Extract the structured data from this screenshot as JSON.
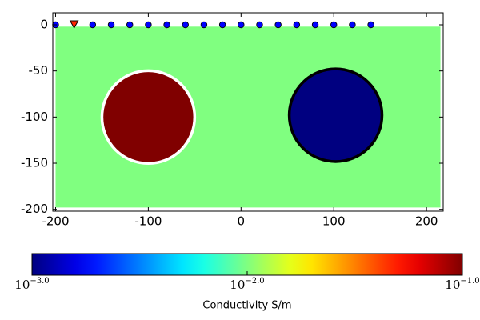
{
  "chart_data": {
    "type": "model",
    "xlim": [
      -203,
      218
    ],
    "ylim": [
      -202,
      13
    ],
    "xticks": [
      -200,
      -100,
      0,
      100,
      200
    ],
    "yticks": [
      0,
      -50,
      -100,
      -150,
      -200
    ],
    "background": {
      "x": [
        -200,
        215
      ],
      "y": [
        -198,
        -2
      ],
      "conductivity": 0.01,
      "color": "#80ff80"
    },
    "bodies": [
      {
        "cx": -100,
        "cy": -100,
        "r": 50,
        "conductivity": 0.1,
        "color": "#800000",
        "edge": "#ffffff"
      },
      {
        "cx": 102,
        "cy": -98,
        "r": 50,
        "conductivity": 0.001,
        "color": "#000080",
        "edge": "#000000"
      }
    ],
    "electrodes": {
      "x": [
        -200,
        -160,
        -140,
        -120,
        -100,
        -80,
        -60,
        -40,
        -20,
        0,
        20,
        40,
        60,
        80,
        100,
        120,
        140
      ],
      "y": 0,
      "color": "#0000ff"
    },
    "source": {
      "x": -180,
      "y": 0,
      "color": "#ff2200"
    },
    "colorbar": {
      "label": "Conductivity S/m",
      "lim": [
        0.001,
        0.1
      ],
      "log": true,
      "colormap": "jet",
      "ticks": [
        {
          "value": 0.001,
          "label": "10",
          "exponent": "−3.0"
        },
        {
          "value": 0.01,
          "label": "10",
          "exponent": "−2.0"
        },
        {
          "value": 0.1,
          "label": "10",
          "exponent": "−1.0"
        }
      ]
    }
  }
}
